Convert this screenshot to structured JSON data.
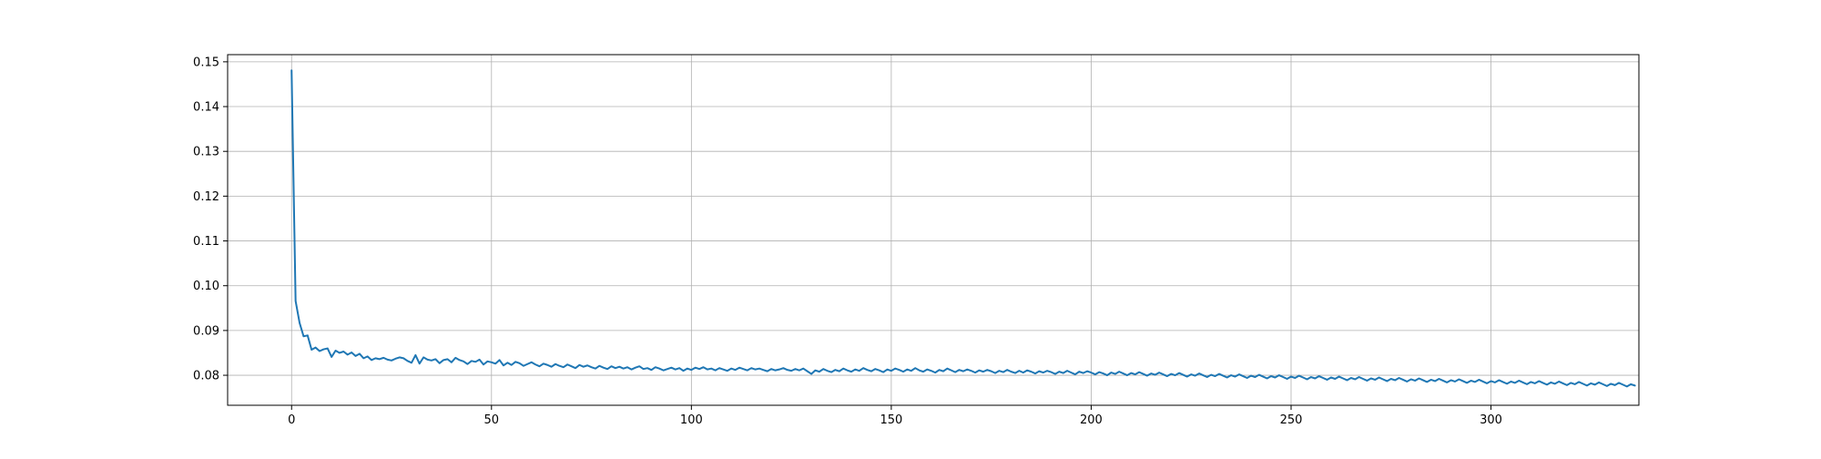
{
  "chart_data": {
    "type": "line",
    "title": "",
    "xlabel": "",
    "ylabel": "",
    "xlim": [
      -16,
      337
    ],
    "ylim": [
      0.0733,
      0.1516
    ],
    "grid": true,
    "xticks": [
      0,
      50,
      100,
      150,
      200,
      250,
      300
    ],
    "xtick_labels": [
      "0",
      "50",
      "100",
      "150",
      "200",
      "250",
      "300"
    ],
    "yticks": [
      0.08,
      0.09,
      0.1,
      0.11,
      0.12,
      0.13,
      0.14,
      0.15
    ],
    "ytick_labels": [
      "0.08",
      "0.09",
      "0.10",
      "0.11",
      "0.12",
      "0.13",
      "0.14",
      "0.15"
    ],
    "series": [
      {
        "color": "#1f77b4",
        "x_start": 0,
        "x_step": 1,
        "values": [
          0.1481,
          0.0966,
          0.0917,
          0.0887,
          0.0889,
          0.0857,
          0.0862,
          0.0854,
          0.0858,
          0.086,
          0.0841,
          0.0855,
          0.085,
          0.0853,
          0.0846,
          0.0851,
          0.0843,
          0.0848,
          0.0838,
          0.0842,
          0.0834,
          0.0838,
          0.0836,
          0.0839,
          0.0835,
          0.0833,
          0.0837,
          0.084,
          0.0838,
          0.0832,
          0.0828,
          0.0845,
          0.0826,
          0.084,
          0.0835,
          0.0833,
          0.0836,
          0.0827,
          0.0834,
          0.0836,
          0.0829,
          0.0839,
          0.0834,
          0.0831,
          0.0825,
          0.0832,
          0.083,
          0.0835,
          0.0824,
          0.0831,
          0.0829,
          0.0826,
          0.0834,
          0.0822,
          0.0828,
          0.0823,
          0.083,
          0.0827,
          0.0821,
          0.0825,
          0.0829,
          0.0824,
          0.082,
          0.0826,
          0.0823,
          0.0819,
          0.0825,
          0.0821,
          0.0818,
          0.0824,
          0.082,
          0.0816,
          0.0823,
          0.0819,
          0.0822,
          0.0818,
          0.0815,
          0.0821,
          0.0817,
          0.0814,
          0.082,
          0.0816,
          0.0819,
          0.0815,
          0.0818,
          0.0813,
          0.0817,
          0.082,
          0.0814,
          0.0816,
          0.0812,
          0.0818,
          0.0815,
          0.0811,
          0.0814,
          0.0817,
          0.0813,
          0.0816,
          0.081,
          0.0815,
          0.0812,
          0.0817,
          0.0814,
          0.0818,
          0.0813,
          0.0815,
          0.0811,
          0.0816,
          0.0813,
          0.081,
          0.0815,
          0.0812,
          0.0817,
          0.0814,
          0.0811,
          0.0816,
          0.0813,
          0.0815,
          0.0812,
          0.0809,
          0.0814,
          0.0811,
          0.0813,
          0.0816,
          0.0812,
          0.081,
          0.0814,
          0.0811,
          0.0815,
          0.0809,
          0.0803,
          0.0811,
          0.0808,
          0.0814,
          0.081,
          0.0807,
          0.0812,
          0.0809,
          0.0815,
          0.0811,
          0.0808,
          0.0813,
          0.081,
          0.0816,
          0.0812,
          0.0809,
          0.0814,
          0.0811,
          0.0807,
          0.0813,
          0.081,
          0.0815,
          0.0812,
          0.0808,
          0.0813,
          0.081,
          0.0816,
          0.0811,
          0.0808,
          0.0813,
          0.081,
          0.0806,
          0.0812,
          0.0809,
          0.0815,
          0.0811,
          0.0807,
          0.0812,
          0.0809,
          0.0813,
          0.081,
          0.0806,
          0.0811,
          0.0808,
          0.0812,
          0.0809,
          0.0805,
          0.081,
          0.0807,
          0.0812,
          0.0808,
          0.0805,
          0.081,
          0.0806,
          0.0811,
          0.0808,
          0.0804,
          0.0809,
          0.0806,
          0.081,
          0.0807,
          0.0803,
          0.0808,
          0.0805,
          0.081,
          0.0806,
          0.0802,
          0.0808,
          0.0805,
          0.0809,
          0.0806,
          0.0802,
          0.0807,
          0.0804,
          0.08,
          0.0806,
          0.0803,
          0.0808,
          0.0804,
          0.08,
          0.0805,
          0.0802,
          0.0807,
          0.0803,
          0.0799,
          0.0804,
          0.0801,
          0.0806,
          0.0802,
          0.0798,
          0.0803,
          0.08,
          0.0805,
          0.0801,
          0.0797,
          0.0802,
          0.0799,
          0.0804,
          0.08,
          0.0796,
          0.0801,
          0.0798,
          0.0803,
          0.0799,
          0.0795,
          0.08,
          0.0797,
          0.0802,
          0.0798,
          0.0794,
          0.0799,
          0.0796,
          0.0801,
          0.0797,
          0.0793,
          0.0798,
          0.0795,
          0.08,
          0.0796,
          0.0792,
          0.0797,
          0.0794,
          0.0799,
          0.0795,
          0.0791,
          0.0796,
          0.0793,
          0.0798,
          0.0794,
          0.079,
          0.0795,
          0.0792,
          0.0797,
          0.0793,
          0.0789,
          0.0794,
          0.0791,
          0.0796,
          0.0792,
          0.0788,
          0.0793,
          0.079,
          0.0795,
          0.0791,
          0.0787,
          0.0792,
          0.0789,
          0.0794,
          0.079,
          0.0786,
          0.0791,
          0.0788,
          0.0793,
          0.0789,
          0.0785,
          0.079,
          0.0787,
          0.0792,
          0.0788,
          0.0784,
          0.0789,
          0.0786,
          0.0791,
          0.0787,
          0.0783,
          0.0788,
          0.0785,
          0.079,
          0.0786,
          0.0782,
          0.0787,
          0.0784,
          0.0789,
          0.0785,
          0.0781,
          0.0786,
          0.0783,
          0.0788,
          0.0784,
          0.078,
          0.0785,
          0.0782,
          0.0787,
          0.0783,
          0.0779,
          0.0784,
          0.0781,
          0.0786,
          0.0782,
          0.0778,
          0.0783,
          0.078,
          0.0785,
          0.0781,
          0.0777,
          0.0782,
          0.0779,
          0.0784,
          0.078,
          0.0776,
          0.0781,
          0.0778,
          0.0783,
          0.0779,
          0.0775,
          0.078,
          0.0777
        ]
      }
    ]
  }
}
